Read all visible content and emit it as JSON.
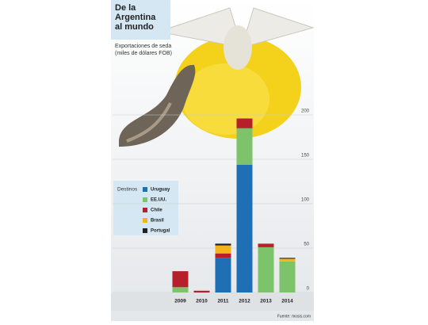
{
  "chart_data": {
    "type": "stacked_bar",
    "title": "De la Argentina al mundo",
    "subtitle": "Exportaciones de seda (miles de dólares FOB)",
    "legend_title": "Destinos",
    "source": "Fuente: mosis.com",
    "categories": [
      "2009",
      "2010",
      "2011",
      "2012",
      "2013",
      "2014"
    ],
    "series": [
      {
        "name": "Uruguay",
        "color": "#1f6fb5",
        "values": [
          0,
          0,
          39,
          144,
          0,
          0
        ]
      },
      {
        "name": "EE.UU.",
        "color": "#7dc36b",
        "values": [
          6,
          0,
          0,
          41,
          51,
          35
        ]
      },
      {
        "name": "Chile",
        "color": "#b5202a",
        "values": [
          18,
          2,
          5,
          11,
          4,
          0
        ]
      },
      {
        "name": "Brasil",
        "color": "#f5b41a",
        "values": [
          0,
          0,
          9,
          0,
          0,
          3
        ]
      },
      {
        "name": "Portugal",
        "color": "#222222",
        "values": [
          0,
          0,
          2,
          0,
          0,
          1
        ]
      }
    ],
    "ylim": [
      0,
      200
    ],
    "yticks": [
      0,
      50,
      100,
      150,
      200
    ],
    "grid": true
  }
}
